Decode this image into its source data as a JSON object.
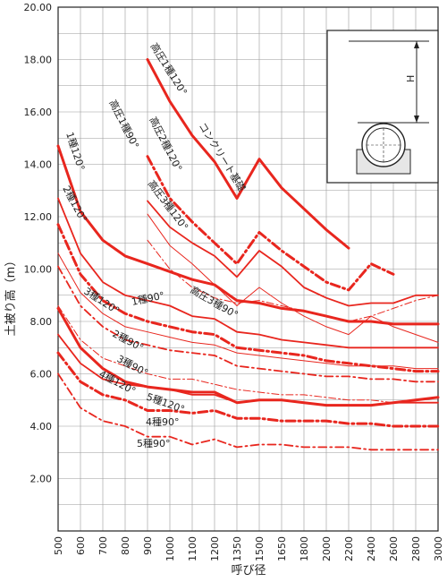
{
  "chart_data": {
    "type": "line",
    "xlabel": "呼び径",
    "ylabel": "土被り高（m）",
    "ylim": [
      0,
      20
    ],
    "yticks": [
      "2.00",
      "4.00",
      "6.00",
      "8.00",
      "10.00",
      "12.00",
      "14.00",
      "16.00",
      "18.00",
      "20.00"
    ],
    "categories": [
      "500",
      "600",
      "700",
      "800",
      "900",
      "1000",
      "1100",
      "1200",
      "1350",
      "1500",
      "1650",
      "1800",
      "2000",
      "2200",
      "2400",
      "2600",
      "2800",
      "3000"
    ],
    "grid": true,
    "series_color": "#e8261e",
    "series": [
      {
        "name": "1種120°",
        "style": "bold-solid",
        "values": [
          14.7,
          12.2,
          11.1,
          10.5,
          10.2,
          9.9,
          9.6,
          9.4,
          8.8,
          8.7,
          8.5,
          8.4,
          8.2,
          8.0,
          8.0,
          7.9,
          7.9,
          7.9
        ]
      },
      {
        "name": "2種120°",
        "style": "solid",
        "values": [
          12.7,
          10.6,
          9.5,
          9.0,
          8.8,
          8.6,
          8.2,
          8.1,
          7.6,
          7.5,
          7.3,
          7.2,
          7.1,
          7.0,
          7.0,
          7.0,
          7.0,
          7.0
        ]
      },
      {
        "name": "3種120°",
        "style": "thin-solid",
        "values": [
          10.6,
          9.1,
          8.3,
          7.8,
          7.6,
          7.4,
          7.2,
          7.1,
          6.8,
          6.7,
          6.6,
          6.5,
          6.4,
          6.3,
          6.3,
          6.3,
          6.2,
          6.2
        ]
      },
      {
        "name": "1種90°",
        "style": "bold-dashdot",
        "values": [
          11.7,
          9.8,
          8.8,
          8.3,
          8.0,
          7.8,
          7.6,
          7.5,
          7.0,
          6.9,
          6.8,
          6.7,
          6.5,
          6.4,
          6.3,
          6.2,
          6.1,
          6.1
        ]
      },
      {
        "name": "2種90°",
        "style": "dashdot",
        "values": [
          10.1,
          8.6,
          7.8,
          7.3,
          7.1,
          6.9,
          6.8,
          6.7,
          6.3,
          6.2,
          6.1,
          6.0,
          5.9,
          5.9,
          5.8,
          5.8,
          5.7,
          5.7
        ]
      },
      {
        "name": "3種90°",
        "style": "thin-dashdot",
        "values": [
          8.6,
          7.3,
          6.6,
          6.3,
          6.0,
          5.8,
          5.8,
          5.6,
          5.4,
          5.3,
          5.2,
          5.2,
          5.1,
          5.0,
          5.0,
          4.9,
          4.9,
          4.9
        ]
      },
      {
        "name": "4種120°",
        "style": "solid",
        "values": [
          7.5,
          6.4,
          5.8,
          5.6,
          5.5,
          5.4,
          5.2,
          5.2,
          4.9,
          5.0,
          5.0,
          4.9,
          4.8,
          4.8,
          4.8,
          4.9,
          4.9,
          4.9
        ]
      },
      {
        "name": "5種120°",
        "style": "bold-solid",
        "values": [
          8.5,
          7.0,
          6.2,
          5.7,
          5.5,
          5.4,
          5.3,
          5.3,
          4.9,
          5.0,
          5.0,
          4.9,
          4.8,
          4.8,
          4.8,
          4.9,
          5.0,
          5.1
        ]
      },
      {
        "name": "4種90°",
        "style": "bold-dashdot",
        "values": [
          6.8,
          5.7,
          5.2,
          5.0,
          4.6,
          4.6,
          4.5,
          4.6,
          4.3,
          4.3,
          4.2,
          4.2,
          4.2,
          4.1,
          4.1,
          4.0,
          4.0,
          4.0
        ]
      },
      {
        "name": "5種90°",
        "style": "dashdot",
        "values": [
          6.0,
          4.7,
          4.2,
          4.0,
          3.6,
          3.6,
          3.3,
          3.5,
          3.2,
          3.3,
          3.3,
          3.2,
          3.2,
          3.2,
          3.1,
          3.1,
          3.1,
          3.1
        ]
      },
      {
        "name": "高圧1種120°",
        "style": "bold-solid",
        "values": [
          null,
          null,
          null,
          null,
          18.0,
          16.4,
          15.1,
          14.1,
          12.7,
          14.2,
          13.1,
          12.3,
          11.5,
          10.8,
          null,
          null,
          null,
          null
        ]
      },
      {
        "name": "高圧1種90°",
        "style": "bold-dashdot",
        "values": [
          null,
          null,
          null,
          null,
          14.3,
          12.7,
          11.8,
          11.0,
          10.2,
          11.4,
          10.7,
          10.1,
          9.5,
          9.2,
          10.2,
          9.8,
          null,
          null
        ]
      },
      {
        "name": "高圧2種120°",
        "style": "solid",
        "values": [
          null,
          null,
          null,
          null,
          12.6,
          11.6,
          11.0,
          10.5,
          9.7,
          10.7,
          10.1,
          9.3,
          8.9,
          8.6,
          8.7,
          8.7,
          9.0,
          9.0
        ]
      },
      {
        "name": "高圧3種120°",
        "style": "thin-solid",
        "values": [
          null,
          null,
          null,
          null,
          12.1,
          10.9,
          10.2,
          9.4,
          8.6,
          9.3,
          8.7,
          8.2,
          7.8,
          7.5,
          8.2,
          7.8,
          7.5,
          7.2
        ]
      },
      {
        "name": "高圧3種90°",
        "style": "thin-dashdot",
        "values": [
          null,
          null,
          null,
          null,
          11.1,
          10.0,
          9.3,
          8.9,
          8.7,
          8.8,
          8.6,
          8.4,
          8.2,
          8.0,
          8.2,
          8.5,
          8.8,
          9.0
        ]
      }
    ],
    "inset": {
      "label": "H"
    }
  }
}
